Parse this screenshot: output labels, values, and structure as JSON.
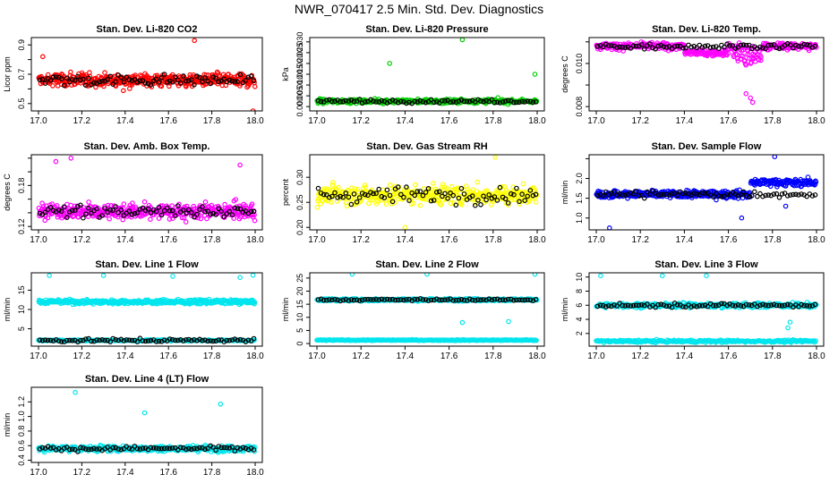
{
  "page": {
    "title": "NWR_070417  2.5 Min. Std. Dev. Diagnostics"
  },
  "colors": {
    "red": "#ff0000",
    "green": "#00cc00",
    "magenta": "#ff00ff",
    "yellow": "#ffff00",
    "blue": "#0000ff",
    "cyan": "#00e5ee",
    "black": "#000000"
  },
  "chart_data": [
    {
      "type": "scatter",
      "title": "Stan. Dev. Li-820 CO2",
      "ylabel": "Licor ppm",
      "xlim": [
        17.0,
        18.0
      ],
      "ylim": [
        0.45,
        0.95
      ],
      "xticks": [
        "17.0",
        "17.2",
        "17.4",
        "17.6",
        "17.8",
        "18.0"
      ],
      "yticks": [
        0.5,
        0.6,
        0.7,
        0.8,
        0.9
      ],
      "ytick_labels": [
        "0.5",
        "",
        "0.7",
        "",
        "0.9"
      ],
      "color": "red",
      "center": 0.66,
      "spread": 0.06,
      "outliers": [
        [
          17.02,
          0.82
        ],
        [
          17.72,
          0.93
        ],
        [
          17.99,
          0.45
        ]
      ]
    },
    {
      "type": "scatter",
      "title": "Stan. Dev. Li-820 Pressure",
      "ylabel": "kPa",
      "xlim": [
        17.0,
        18.0
      ],
      "ylim": [
        -0.002,
        0.032
      ],
      "xticks": [
        "17.0",
        "17.2",
        "17.4",
        "17.6",
        "17.8",
        "18.0"
      ],
      "yticks": [
        0.0,
        0.005,
        0.01,
        0.015,
        0.02,
        0.025,
        0.03
      ],
      "ytick_labels": [
        "0.000",
        "0.005",
        "0.010",
        "0.015",
        "0.020",
        "0.025",
        "0.030"
      ],
      "color": "green",
      "center": 0.0025,
      "spread": 0.0012,
      "outliers": [
        [
          17.33,
          0.02
        ],
        [
          17.66,
          0.031
        ],
        [
          17.99,
          0.015
        ]
      ]
    },
    {
      "type": "scatter",
      "title": "Stan. Dev. Li-820 Temp.",
      "ylabel": "degrees C",
      "xlim": [
        17.0,
        18.0
      ],
      "ylim": [
        0.0078,
        0.0112
      ],
      "xticks": [
        "17.0",
        "17.2",
        "17.4",
        "17.6",
        "17.8",
        "18.0"
      ],
      "yticks": [
        0.008,
        0.009,
        0.01,
        0.011
      ],
      "ytick_labels": [
        "0.008",
        "",
        "0.010",
        ""
      ],
      "color": "magenta",
      "center": 0.0108,
      "spread": 0.0002,
      "outliers": [
        [
          17.7,
          0.0084
        ],
        [
          17.71,
          0.0082
        ],
        [
          17.68,
          0.0086
        ]
      ]
    },
    {
      "type": "scatter",
      "title": "Stan. Dev. Amb. Box Temp.",
      "ylabel": "degrees C",
      "xlim": [
        17.0,
        18.0
      ],
      "ylim": [
        0.115,
        0.225
      ],
      "xticks": [
        "17.0",
        "17.2",
        "17.4",
        "17.6",
        "17.8",
        "18.0"
      ],
      "yticks": [
        0.12,
        0.14,
        0.16,
        0.18,
        0.2,
        0.22
      ],
      "ytick_labels": [
        "0.12",
        "",
        "",
        "0.18",
        "",
        ""
      ],
      "color": "magenta",
      "center": 0.142,
      "spread": 0.014,
      "outliers": [
        [
          17.15,
          0.22
        ],
        [
          17.08,
          0.215
        ],
        [
          17.93,
          0.21
        ]
      ]
    },
    {
      "type": "scatter",
      "title": "Stan. Dev. Gas Stream RH",
      "ylabel": "percent",
      "xlim": [
        17.0,
        18.0
      ],
      "ylim": [
        0.195,
        0.345
      ],
      "xticks": [
        "17.0",
        "17.2",
        "17.4",
        "17.6",
        "17.8",
        "18.0"
      ],
      "yticks": [
        0.2,
        0.25,
        0.3
      ],
      "ytick_labels": [
        "0.20",
        "0.25",
        "0.30"
      ],
      "color": "yellow",
      "center": 0.265,
      "spread": 0.025,
      "outliers": [
        [
          17.81,
          0.34
        ],
        [
          17.4,
          0.2
        ]
      ]
    },
    {
      "type": "scatter",
      "title": "Stan. Dev. Sample Flow",
      "ylabel": "ml/min",
      "xlim": [
        17.0,
        18.0
      ],
      "ylim": [
        0.7,
        2.6
      ],
      "xticks": [
        "17.0",
        "17.2",
        "17.4",
        "17.6",
        "17.8",
        "18.0"
      ],
      "yticks": [
        1.0,
        1.5,
        2.0,
        2.5
      ],
      "ytick_labels": [
        "1.0",
        "1.5",
        "2.0",
        ""
      ],
      "color": "blue",
      "center": 1.6,
      "spread": 0.12,
      "outliers": [
        [
          17.81,
          2.55
        ],
        [
          17.06,
          0.75
        ],
        [
          17.66,
          1.0
        ],
        [
          17.86,
          1.3
        ]
      ]
    },
    {
      "type": "scatter",
      "title": "Stan. Dev. Line 1 Flow",
      "ylabel": "ml/min",
      "xlim": [
        17.0,
        18.0
      ],
      "ylim": [
        0.5,
        19.5
      ],
      "xticks": [
        "17.0",
        "17.2",
        "17.4",
        "17.6",
        "17.8",
        "18.0"
      ],
      "yticks": [
        5,
        10,
        15
      ],
      "ytick_labels": [
        "5",
        "10",
        "15"
      ],
      "color": "cyan",
      "center": 12.0,
      "spread": 0.7,
      "second_band": 2.0,
      "outliers": [
        [
          17.05,
          18.8
        ],
        [
          17.3,
          18.8
        ],
        [
          17.62,
          18.6
        ],
        [
          17.93,
          18.3
        ],
        [
          17.99,
          18.9
        ]
      ]
    },
    {
      "type": "scatter",
      "title": "Stan. Dev. Line 2 Flow",
      "ylabel": "ml/min",
      "xlim": [
        17.0,
        18.0
      ],
      "ylim": [
        -1,
        27
      ],
      "xticks": [
        "17.0",
        "17.2",
        "17.4",
        "17.6",
        "17.8",
        "18.0"
      ],
      "yticks": [
        0,
        5,
        10,
        15,
        20,
        25
      ],
      "ytick_labels": [
        "0",
        "5",
        "10",
        "15",
        "20",
        "25"
      ],
      "color": "cyan",
      "center": 16.7,
      "spread": 0.6,
      "second_band": 1.3,
      "outliers": [
        [
          17.16,
          26.5
        ],
        [
          17.5,
          26.5
        ],
        [
          17.66,
          8.0
        ],
        [
          17.87,
          8.4
        ],
        [
          17.99,
          26.5
        ]
      ]
    },
    {
      "type": "scatter",
      "title": "Stan. Dev. Line 3 Flow",
      "ylabel": "ml/min",
      "xlim": [
        17.0,
        18.0
      ],
      "ylim": [
        0.2,
        10.6
      ],
      "xticks": [
        "17.0",
        "17.2",
        "17.4",
        "17.6",
        "17.8",
        "18.0"
      ],
      "yticks": [
        2,
        4,
        6,
        8,
        10
      ],
      "ytick_labels": [
        "2",
        "4",
        "6",
        "8",
        "10"
      ],
      "color": "cyan",
      "center": 6.0,
      "spread": 0.4,
      "second_band": 0.9,
      "outliers": [
        [
          17.02,
          10.2
        ],
        [
          17.3,
          10.2
        ],
        [
          17.5,
          10.2
        ],
        [
          17.87,
          2.8
        ],
        [
          17.88,
          3.6
        ]
      ]
    },
    {
      "type": "scatter",
      "title": "Stan. Dev. Line 4 (LT) Flow",
      "ylabel": "ml/min",
      "xlim": [
        17.0,
        18.0
      ],
      "ylim": [
        0.37,
        1.4
      ],
      "xticks": [
        "17.0",
        "17.2",
        "17.4",
        "17.6",
        "17.8",
        "18.0"
      ],
      "yticks": [
        0.4,
        0.6,
        0.8,
        1.0,
        1.2
      ],
      "ytick_labels": [
        "0.4",
        "0.6",
        "0.8",
        "1.0",
        "1.2"
      ],
      "color": "cyan",
      "center": 0.56,
      "spread": 0.05,
      "outliers": [
        [
          17.17,
          1.33
        ],
        [
          17.49,
          1.05
        ],
        [
          17.84,
          1.17
        ]
      ]
    }
  ]
}
